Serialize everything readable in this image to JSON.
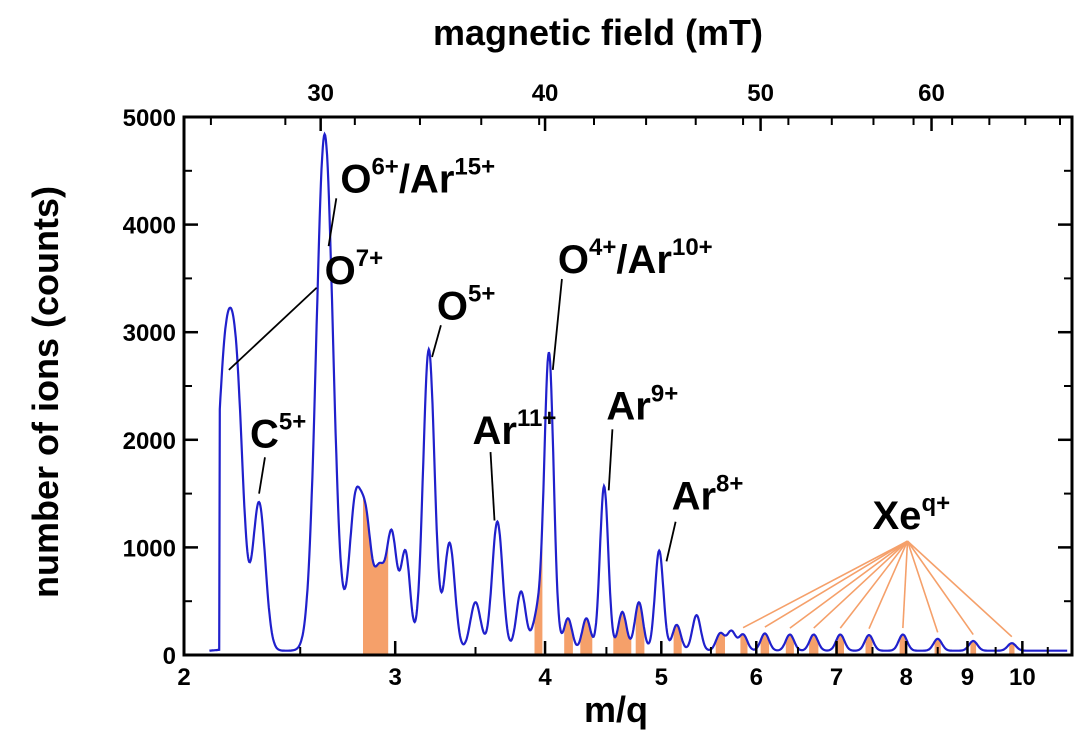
{
  "chart_data": {
    "type": "line",
    "title": "",
    "xlabel": "m/q",
    "ylabel": "number of ions (counts)",
    "top_xlabel": "magnetic field (mT)",
    "x_scale": "log",
    "xlim": [
      2,
      11
    ],
    "ylim": [
      0,
      5000
    ],
    "x_ticks": [
      2,
      3,
      4,
      5,
      6,
      7,
      8,
      9,
      10
    ],
    "y_ticks": [
      0,
      1000,
      2000,
      3000,
      4000,
      5000
    ],
    "top_ticks_mT": [
      30,
      40,
      50,
      60
    ],
    "top_tick_mq": [
      2.6,
      4.0,
      6.05,
      8.4
    ],
    "grid": false,
    "line_color": "#2020cc",
    "fill_color": "#f5a06a",
    "baseline": 40,
    "peaks": [
      {
        "x": 2.17,
        "y": 2870,
        "w": 0.018
      },
      {
        "x": 2.22,
        "y": 1250,
        "w": 0.012
      },
      {
        "x": 2.31,
        "y": 1370,
        "w": 0.012
      },
      {
        "x": 2.62,
        "y": 4800,
        "w": 0.016
      },
      {
        "x": 2.78,
        "y": 1380,
        "w": 0.012
      },
      {
        "x": 2.84,
        "y": 980,
        "w": 0.01
      },
      {
        "x": 2.91,
        "y": 700,
        "w": 0.01
      },
      {
        "x": 2.98,
        "y": 1070,
        "w": 0.01
      },
      {
        "x": 3.06,
        "y": 900,
        "w": 0.009
      },
      {
        "x": 3.2,
        "y": 2800,
        "w": 0.011
      },
      {
        "x": 3.33,
        "y": 1000,
        "w": 0.01
      },
      {
        "x": 3.5,
        "y": 450,
        "w": 0.01
      },
      {
        "x": 3.65,
        "y": 1200,
        "w": 0.01
      },
      {
        "x": 3.82,
        "y": 550,
        "w": 0.009
      },
      {
        "x": 3.94,
        "y": 320,
        "w": 0.009
      },
      {
        "x": 4.03,
        "y": 2760,
        "w": 0.009
      },
      {
        "x": 4.18,
        "y": 300,
        "w": 0.008
      },
      {
        "x": 4.33,
        "y": 300,
        "w": 0.008
      },
      {
        "x": 4.48,
        "y": 1530,
        "w": 0.008
      },
      {
        "x": 4.64,
        "y": 360,
        "w": 0.008
      },
      {
        "x": 4.79,
        "y": 450,
        "w": 0.008
      },
      {
        "x": 4.98,
        "y": 930,
        "w": 0.008
      },
      {
        "x": 5.15,
        "y": 240,
        "w": 0.008
      },
      {
        "x": 5.35,
        "y": 330,
        "w": 0.008
      },
      {
        "x": 5.6,
        "y": 160,
        "w": 0.008
      },
      {
        "x": 5.72,
        "y": 180,
        "w": 0.008
      },
      {
        "x": 5.85,
        "y": 150,
        "w": 0.008
      },
      {
        "x": 6.1,
        "y": 160,
        "w": 0.008
      },
      {
        "x": 6.4,
        "y": 150,
        "w": 0.008
      },
      {
        "x": 6.7,
        "y": 150,
        "w": 0.008
      },
      {
        "x": 7.05,
        "y": 150,
        "w": 0.008
      },
      {
        "x": 7.45,
        "y": 145,
        "w": 0.008
      },
      {
        "x": 7.95,
        "y": 150,
        "w": 0.008
      },
      {
        "x": 8.5,
        "y": 110,
        "w": 0.008
      },
      {
        "x": 9.1,
        "y": 90,
        "w": 0.008
      },
      {
        "x": 9.8,
        "y": 70,
        "w": 0.008
      }
    ],
    "filled_regions": [
      [
        2.82,
        2.96
      ],
      [
        3.92,
        3.98
      ],
      [
        4.15,
        4.22
      ],
      [
        4.28,
        4.38
      ],
      [
        4.56,
        4.72
      ],
      [
        4.76,
        4.84
      ],
      [
        5.12,
        5.2
      ],
      [
        5.55,
        5.65
      ],
      [
        5.82,
        5.9
      ],
      [
        6.05,
        6.15
      ],
      [
        6.35,
        6.45
      ],
      [
        6.64,
        6.76
      ],
      [
        6.98,
        7.1
      ],
      [
        7.4,
        7.5
      ],
      [
        7.9,
        8.0
      ],
      [
        8.45,
        8.55
      ],
      [
        9.05,
        9.15
      ],
      [
        9.75,
        9.85
      ]
    ],
    "annotations": [
      {
        "base": "C",
        "sup": "5+",
        "point": [
          2.31,
          1500
        ],
        "text_at": [
          2.27,
          1930
        ]
      },
      {
        "base": "O",
        "sup": "7+",
        "point": [
          2.18,
          2650
        ],
        "text_at": [
          2.62,
          3450
        ]
      },
      {
        "base": "O",
        "sup": "6+",
        "mid": "/Ar",
        "sup2": "15+",
        "point": [
          2.64,
          3800
        ],
        "text_at": [
          2.7,
          4300
        ]
      },
      {
        "base": "O",
        "sup": "5+",
        "point": [
          3.22,
          2770
        ],
        "text_at": [
          3.25,
          3120
        ]
      },
      {
        "base": "Ar",
        "sup": "11+",
        "point": [
          3.63,
          1250
        ],
        "text_at": [
          3.48,
          1960
        ]
      },
      {
        "base": "O",
        "sup": "4+",
        "mid": "/Ar",
        "sup2": "10+",
        "point": [
          4.06,
          2650
        ],
        "text_at": [
          4.1,
          3550
        ]
      },
      {
        "base": "Ar",
        "sup": "9+",
        "point": [
          4.52,
          1530
        ],
        "text_at": [
          4.5,
          2190
        ]
      },
      {
        "base": "Ar",
        "sup": "8+",
        "point": [
          5.05,
          870
        ],
        "text_at": [
          5.1,
          1350
        ]
      },
      {
        "base": "Xe",
        "sup": "q+",
        "text_at": [
          7.5,
          1170
        ],
        "color": "#f5a06a",
        "pointers": [
          5.85,
          6.1,
          6.4,
          6.7,
          7.05,
          7.45,
          7.95,
          8.5,
          9.1,
          9.8
        ]
      }
    ]
  }
}
